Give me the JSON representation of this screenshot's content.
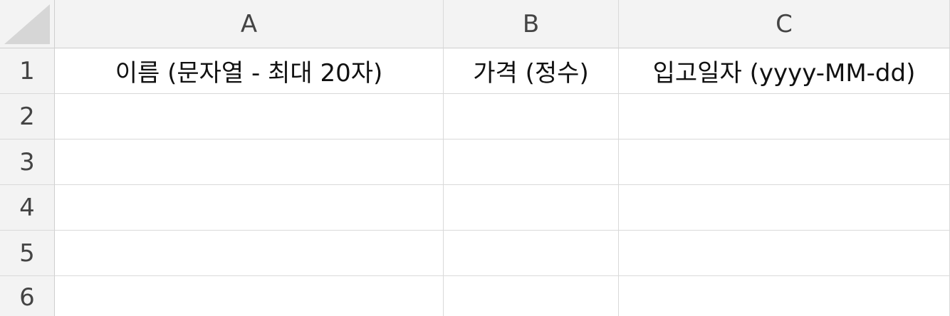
{
  "columns": [
    "A",
    "B",
    "C"
  ],
  "rows": [
    "1",
    "2",
    "3",
    "4",
    "5",
    "6"
  ],
  "cells": {
    "A1": "이름 (문자열 - 최대 20자)",
    "B1": "가격 (정수)",
    "C1": "입고일자 (yyyy-MM-dd)"
  },
  "colors": {
    "header_bg": "#f3f3f3",
    "gridline": "#d9d9d9",
    "header_text": "#444444"
  }
}
